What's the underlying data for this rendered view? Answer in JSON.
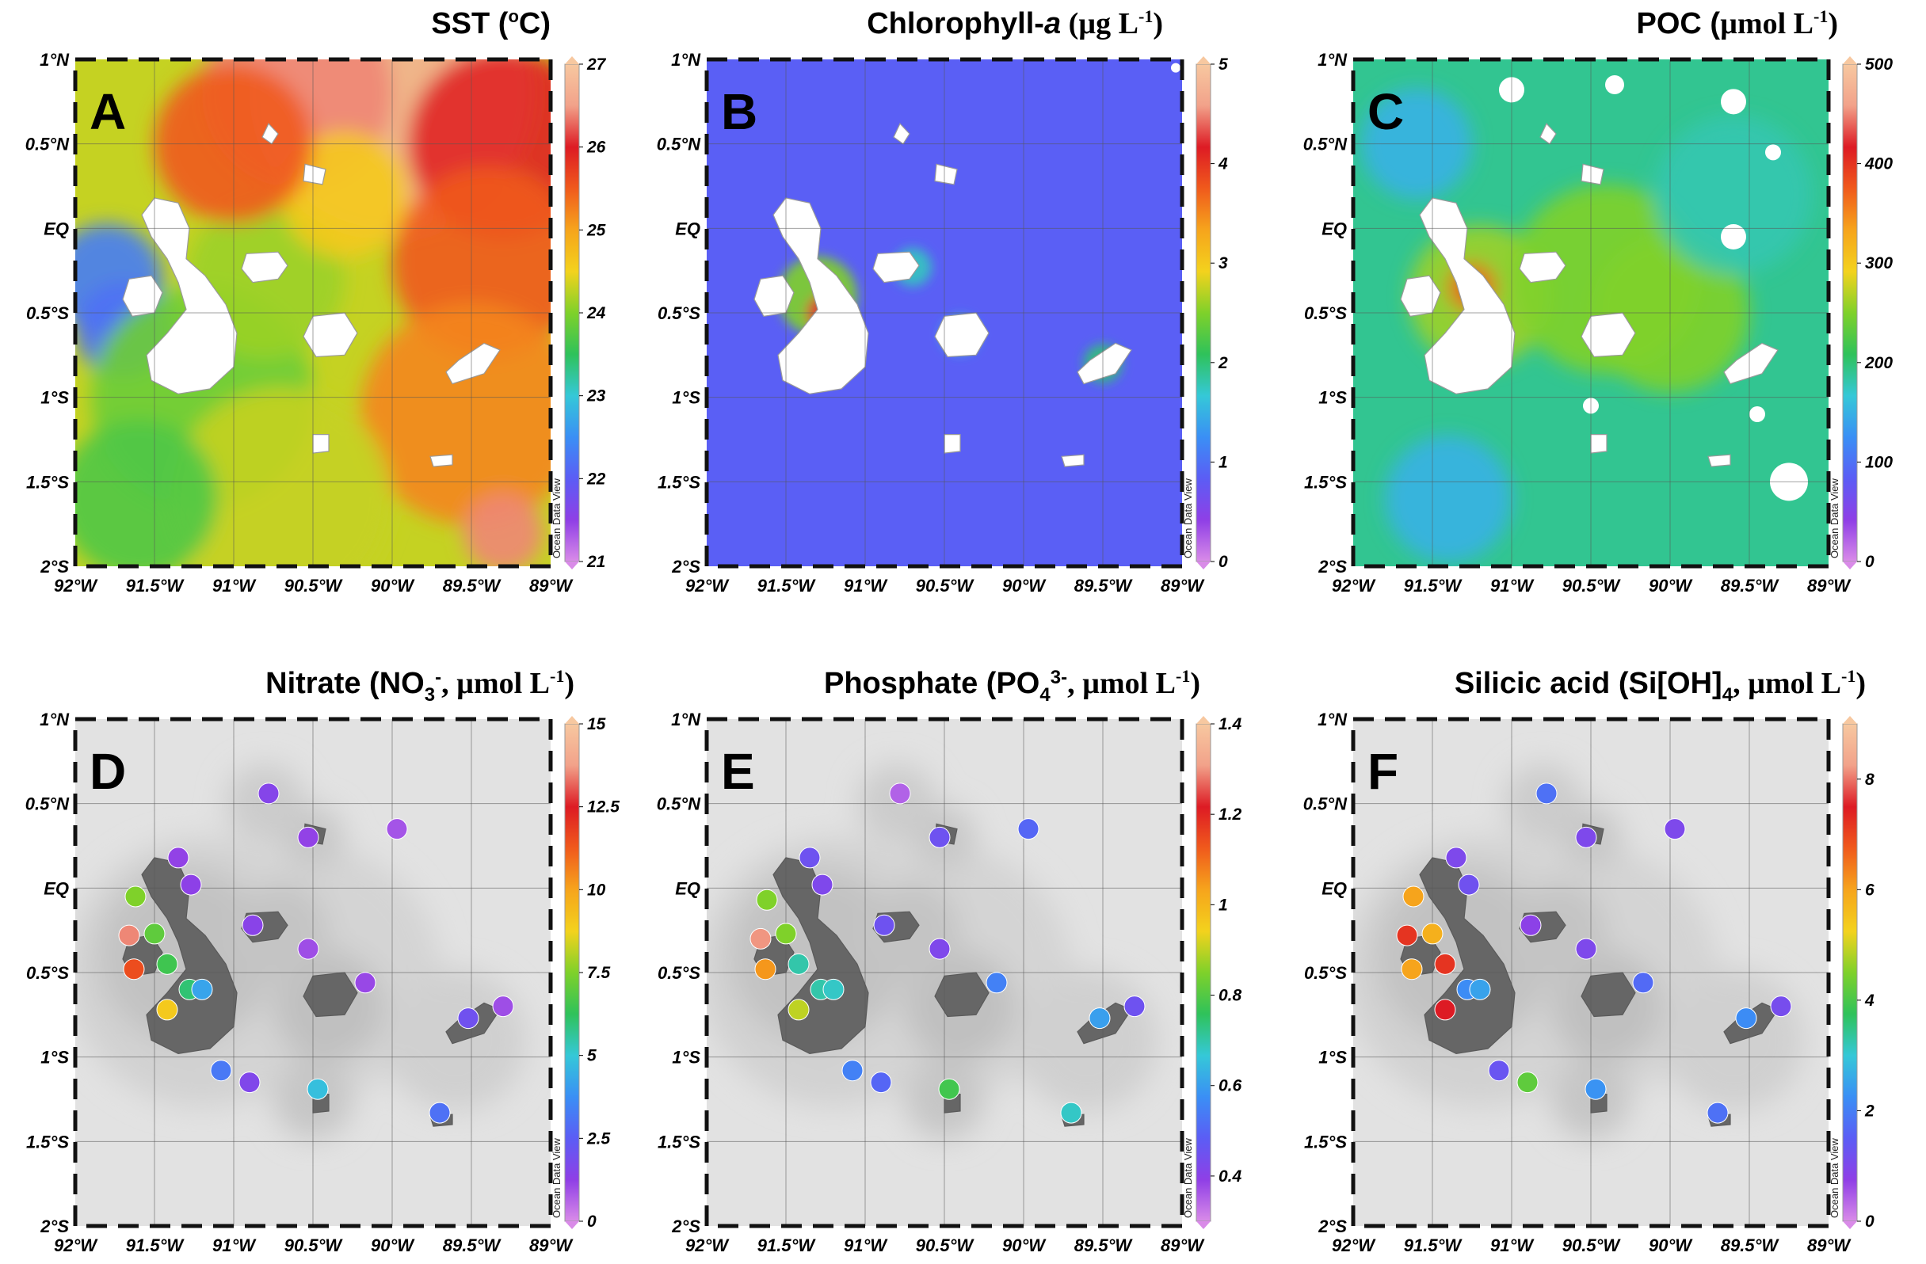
{
  "panels": [
    {
      "id": "A",
      "letter": "A",
      "title_prefix": "SST (",
      "title_mid": "o",
      "title_suffix": "C)",
      "colorbar": {
        "min": 21,
        "max": 27,
        "ticks": [
          "21",
          "22",
          "23",
          "24",
          "25",
          "26",
          "27"
        ]
      },
      "kind": "sst"
    },
    {
      "id": "B",
      "letter": "B",
      "title_prefix": "Chlorophyll-",
      "title_italic": "a",
      "title_suffix": " (µg L",
      "title_sup": "-1",
      "title_end": ")",
      "colorbar": {
        "min": 0,
        "max": 5,
        "ticks": [
          "0",
          "1",
          "2",
          "3",
          "4",
          "5"
        ]
      },
      "kind": "chl"
    },
    {
      "id": "C",
      "letter": "C",
      "title_prefix": "POC (µmol L",
      "title_sup": "-1",
      "title_end": ")",
      "colorbar": {
        "min": 0,
        "max": 500,
        "ticks": [
          "0",
          "100",
          "200",
          "300",
          "400",
          "500"
        ]
      },
      "kind": "poc"
    },
    {
      "id": "D",
      "letter": "D",
      "title_prefix": "Nitrate (NO",
      "title_sub": "3",
      "title_sup": "-",
      "title_suffix": ", µmol L",
      "title_sup2": "-1",
      "title_end": ")",
      "colorbar": {
        "min": 0,
        "max": 15,
        "ticks": [
          "0",
          "2.5",
          "5",
          "7.5",
          "10",
          "12.5",
          "15"
        ]
      },
      "kind": "stations"
    },
    {
      "id": "E",
      "letter": "E",
      "title_prefix": "Phosphate (PO",
      "title_sub": "4",
      "title_sup": "3-",
      "title_suffix": ", µmol L",
      "title_sup2": "-1",
      "title_end": ")",
      "colorbar": {
        "min": 0.3,
        "max": 1.4,
        "ticks": [
          "0.4",
          "0.6",
          "0.8",
          "1",
          "1.2",
          "1.4"
        ]
      },
      "kind": "stations"
    },
    {
      "id": "F",
      "letter": "F",
      "title_prefix": "Silicic acid (Si[OH]",
      "title_sub": "4",
      "title_suffix": ", µmol L",
      "title_sup2": "-1",
      "title_end": ")",
      "colorbar": {
        "min": 0,
        "max": 9,
        "ticks": [
          "0",
          "2",
          "4",
          "6",
          "8"
        ]
      },
      "kind": "stations"
    }
  ],
  "axes": {
    "lon_labels": [
      "92°W",
      "91.5°W",
      "91°W",
      "90.5°W",
      "90°W",
      "89.5°W",
      "89°W"
    ],
    "lat_labels": [
      "1°N",
      "0.5°N",
      "EQ",
      "0.5°S",
      "1°S",
      "1.5°S",
      "2°S"
    ],
    "lon_range": [
      -92,
      -89
    ],
    "lat_range": [
      -2,
      1
    ]
  },
  "watermark": "Ocean Data View",
  "colormap": [
    "#d98be8",
    "#8f3fe6",
    "#5b5df5",
    "#3a8ff5",
    "#35c8d8",
    "#2fc25a",
    "#7fd12a",
    "#f3d21d",
    "#f6a41c",
    "#f05a1c",
    "#dd1b24",
    "#f2a28a",
    "#f7c8a0"
  ],
  "chart_data": {
    "type": "map",
    "stations": {
      "D": [
        {
          "lon": -90.78,
          "lat": 0.56,
          "v": 1.5
        },
        {
          "lon": -91.35,
          "lat": 0.18,
          "v": 1.2
        },
        {
          "lon": -91.27,
          "lat": 0.02,
          "v": 1.3
        },
        {
          "lon": -91.62,
          "lat": -0.05,
          "v": 7.5
        },
        {
          "lon": -91.66,
          "lat": -0.28,
          "v": 13.5
        },
        {
          "lon": -91.5,
          "lat": -0.27,
          "v": 7.0
        },
        {
          "lon": -91.63,
          "lat": -0.48,
          "v": 11.5
        },
        {
          "lon": -91.42,
          "lat": -0.45,
          "v": 6.5
        },
        {
          "lon": -91.28,
          "lat": -0.6,
          "v": 6.0
        },
        {
          "lon": -91.2,
          "lat": -0.6,
          "v": 4.2
        },
        {
          "lon": -91.42,
          "lat": -0.72,
          "v": 9.0
        },
        {
          "lon": -90.88,
          "lat": -0.22,
          "v": 1.4
        },
        {
          "lon": -90.53,
          "lat": -0.36,
          "v": 1.0
        },
        {
          "lon": -90.53,
          "lat": 0.3,
          "v": 1.2
        },
        {
          "lon": -89.97,
          "lat": 0.35,
          "v": 0.9
        },
        {
          "lon": -90.17,
          "lat": -0.56,
          "v": 1.1
        },
        {
          "lon": -89.52,
          "lat": -0.77,
          "v": 2.0
        },
        {
          "lon": -89.3,
          "lat": -0.7,
          "v": 1.0
        },
        {
          "lon": -91.08,
          "lat": -1.08,
          "v": 3.2
        },
        {
          "lon": -90.9,
          "lat": -1.15,
          "v": 1.6
        },
        {
          "lon": -90.47,
          "lat": -1.19,
          "v": 4.8
        },
        {
          "lon": -89.7,
          "lat": -1.33,
          "v": 3.0
        }
      ],
      "E": [
        {
          "lon": -90.78,
          "lat": 0.56,
          "v": 0.35
        },
        {
          "lon": -91.35,
          "lat": 0.18,
          "v": 0.45
        },
        {
          "lon": -91.27,
          "lat": 0.02,
          "v": 0.42
        },
        {
          "lon": -91.62,
          "lat": -0.07,
          "v": 0.85
        },
        {
          "lon": -91.66,
          "lat": -0.3,
          "v": 1.3
        },
        {
          "lon": -91.5,
          "lat": -0.27,
          "v": 0.85
        },
        {
          "lon": -91.63,
          "lat": -0.48,
          "v": 1.05
        },
        {
          "lon": -91.42,
          "lat": -0.45,
          "v": 0.7
        },
        {
          "lon": -91.28,
          "lat": -0.6,
          "v": 0.7
        },
        {
          "lon": -91.2,
          "lat": -0.6,
          "v": 0.68
        },
        {
          "lon": -91.42,
          "lat": -0.72,
          "v": 0.9
        },
        {
          "lon": -90.88,
          "lat": -0.22,
          "v": 0.45
        },
        {
          "lon": -90.53,
          "lat": -0.36,
          "v": 0.42
        },
        {
          "lon": -90.53,
          "lat": 0.3,
          "v": 0.45
        },
        {
          "lon": -89.97,
          "lat": 0.35,
          "v": 0.5
        },
        {
          "lon": -90.17,
          "lat": -0.56,
          "v": 0.55
        },
        {
          "lon": -89.52,
          "lat": -0.77,
          "v": 0.6
        },
        {
          "lon": -89.3,
          "lat": -0.7,
          "v": 0.45
        },
        {
          "lon": -91.08,
          "lat": -1.08,
          "v": 0.55
        },
        {
          "lon": -90.9,
          "lat": -1.15,
          "v": 0.5
        },
        {
          "lon": -90.47,
          "lat": -1.19,
          "v": 0.78
        },
        {
          "lon": -89.7,
          "lat": -1.33,
          "v": 0.68
        }
      ],
      "F": [
        {
          "lon": -90.78,
          "lat": 0.56,
          "v": 1.8
        },
        {
          "lon": -91.35,
          "lat": 0.18,
          "v": 1.0
        },
        {
          "lon": -91.27,
          "lat": 0.02,
          "v": 1.2
        },
        {
          "lon": -91.62,
          "lat": -0.05,
          "v": 6.0
        },
        {
          "lon": -91.66,
          "lat": -0.28,
          "v": 7.2
        },
        {
          "lon": -91.5,
          "lat": -0.27,
          "v": 5.8
        },
        {
          "lon": -91.63,
          "lat": -0.48,
          "v": 6.0
        },
        {
          "lon": -91.42,
          "lat": -0.45,
          "v": 7.2
        },
        {
          "lon": -91.28,
          "lat": -0.6,
          "v": 2.2
        },
        {
          "lon": -91.2,
          "lat": -0.6,
          "v": 2.5
        },
        {
          "lon": -91.42,
          "lat": -0.72,
          "v": 7.5
        },
        {
          "lon": -90.88,
          "lat": -0.22,
          "v": 0.8
        },
        {
          "lon": -90.53,
          "lat": -0.36,
          "v": 1.0
        },
        {
          "lon": -90.53,
          "lat": 0.3,
          "v": 1.0
        },
        {
          "lon": -89.97,
          "lat": 0.35,
          "v": 1.0
        },
        {
          "lon": -90.17,
          "lat": -0.56,
          "v": 1.7
        },
        {
          "lon": -89.52,
          "lat": -0.77,
          "v": 2.2
        },
        {
          "lon": -89.3,
          "lat": -0.7,
          "v": 1.1
        },
        {
          "lon": -91.08,
          "lat": -1.08,
          "v": 1.3
        },
        {
          "lon": -90.9,
          "lat": -1.15,
          "v": 4.2
        },
        {
          "lon": -90.47,
          "lat": -1.19,
          "v": 2.3
        },
        {
          "lon": -89.7,
          "lat": -1.33,
          "v": 1.8
        }
      ]
    }
  }
}
